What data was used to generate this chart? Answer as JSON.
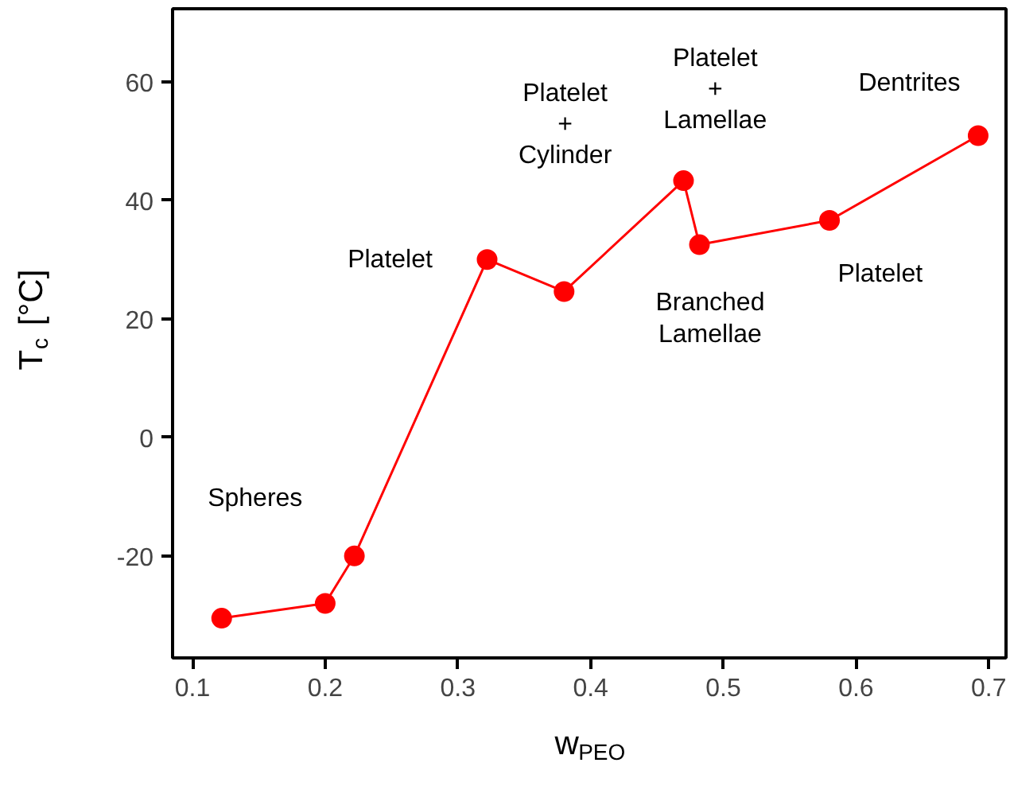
{
  "chart_data": {
    "type": "line",
    "xlabel": "w$_{PEO}$",
    "ylabel": "T$_{c}$ [°C]",
    "x": [
      0.122,
      0.2,
      0.222,
      0.322,
      0.38,
      0.47,
      0.482,
      0.58,
      0.692
    ],
    "series": [
      {
        "color": "#ff0000",
        "values": [
          -30.5,
          -28,
          -20,
          30,
          24.6,
          43.3,
          32.5,
          36.6,
          50.9
        ]
      }
    ],
    "marker": "circle",
    "line_style": "solid",
    "grid": false,
    "xlim": [
      0.085,
      0.713
    ],
    "ylim": [
      -37.2,
      72.3
    ],
    "xticks": [
      0.1,
      0.2,
      0.3,
      0.4,
      0.5,
      0.6,
      0.7
    ],
    "yticks": [
      -20,
      0,
      20,
      40,
      60
    ],
    "annotations": [
      "Spheres",
      "Platelet",
      "Platelet\n+\nCylinder",
      "Platelet\n+\nLamellae",
      "Branched\nLamellae",
      "Platelet",
      "Dentrites"
    ]
  }
}
